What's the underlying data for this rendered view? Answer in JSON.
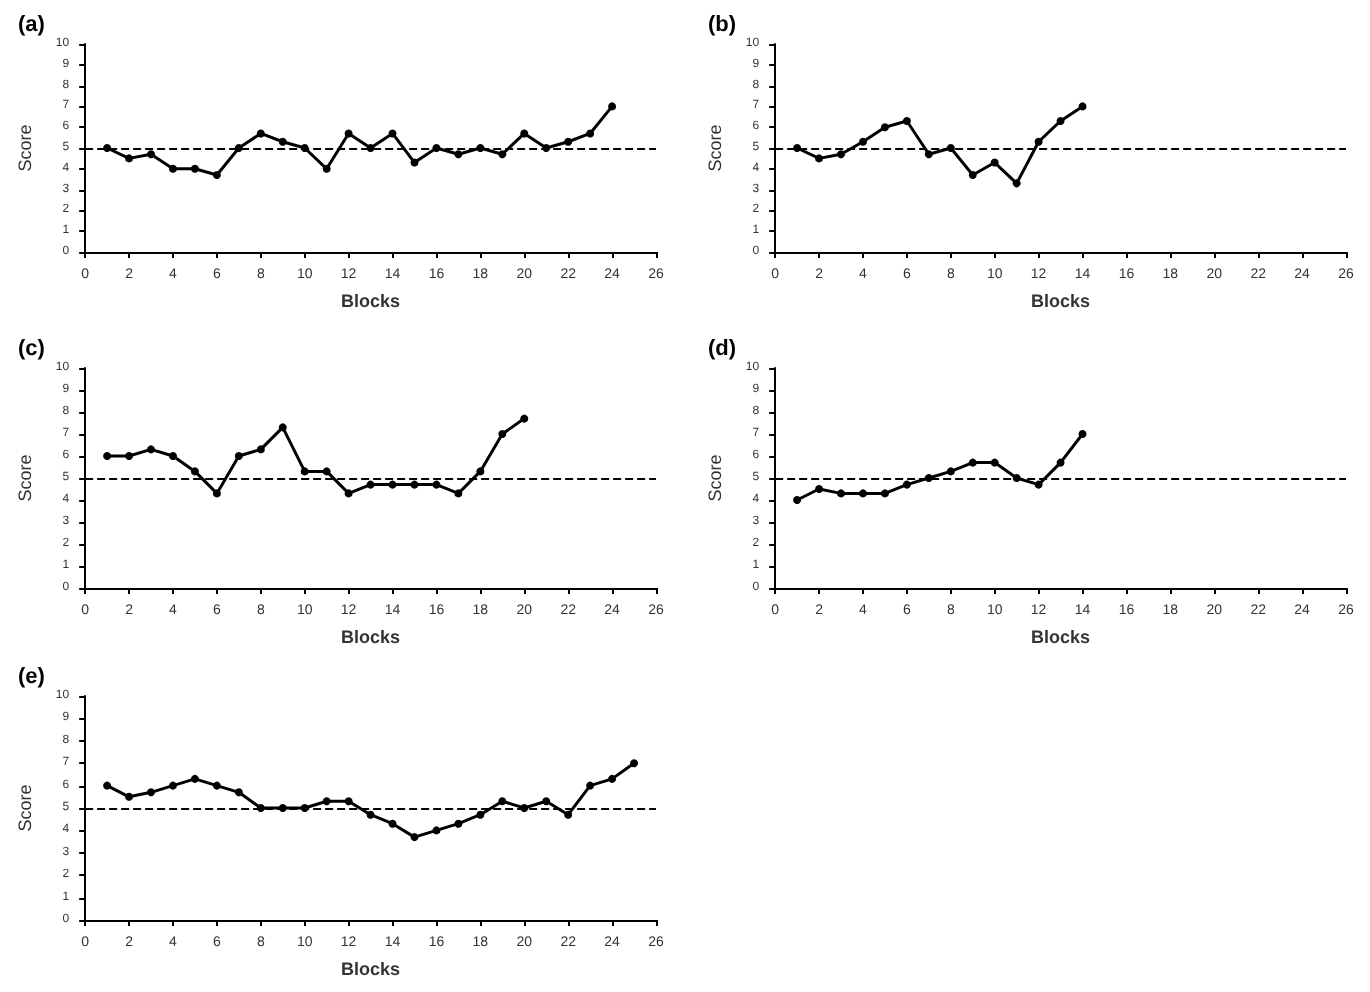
{
  "chart_data": [
    {
      "type": "line",
      "title": "(a)",
      "xlabel": "Blocks",
      "ylabel": "Score",
      "marker": "circle",
      "line_style": "solid",
      "grid": false,
      "xlim": [
        0,
        26
      ],
      "xticks": [
        0,
        2,
        4,
        6,
        8,
        10,
        12,
        14,
        16,
        18,
        20,
        22,
        24,
        26
      ],
      "ylim": [
        0,
        10
      ],
      "yticks": [
        0,
        1,
        2,
        3,
        4,
        5,
        6,
        7,
        8,
        9,
        10
      ],
      "ref_lines": [
        {
          "axis": "y",
          "value": 5,
          "line_style": "dashed",
          "color": "#000000"
        }
      ],
      "x": [
        1,
        2,
        3,
        4,
        5,
        6,
        7,
        8,
        9,
        10,
        11,
        12,
        13,
        14,
        15,
        16,
        17,
        18,
        19,
        20,
        21,
        22,
        23,
        24
      ],
      "series": [
        {
          "color": "#000000",
          "values": [
            5,
            4.5,
            4.7,
            4,
            4,
            3.7,
            5,
            5.7,
            5.3,
            5,
            4,
            5.7,
            5,
            5.7,
            4.3,
            5,
            4.7,
            5,
            4.7,
            5.7,
            5,
            5.3,
            5.7,
            7
          ]
        }
      ]
    },
    {
      "type": "line",
      "title": "(b)",
      "xlabel": "Blocks",
      "ylabel": "Score",
      "marker": "circle",
      "line_style": "solid",
      "grid": false,
      "xlim": [
        0,
        26
      ],
      "xticks": [
        0,
        2,
        4,
        6,
        8,
        10,
        12,
        14,
        16,
        18,
        20,
        22,
        24,
        26
      ],
      "ylim": [
        0,
        10
      ],
      "yticks": [
        0,
        1,
        2,
        3,
        4,
        5,
        6,
        7,
        8,
        9,
        10
      ],
      "ref_lines": [
        {
          "axis": "y",
          "value": 5,
          "line_style": "dashed",
          "color": "#000000"
        }
      ],
      "x": [
        1,
        2,
        3,
        4,
        5,
        6,
        7,
        8,
        9,
        10,
        11,
        12,
        13,
        14
      ],
      "series": [
        {
          "color": "#000000",
          "values": [
            5,
            4.5,
            4.7,
            5.3,
            6,
            6.3,
            4.7,
            5,
            3.7,
            4.3,
            3.3,
            5.3,
            6.3,
            7
          ]
        }
      ]
    },
    {
      "type": "line",
      "title": "(c)",
      "xlabel": "Blocks",
      "ylabel": "Score",
      "marker": "circle",
      "line_style": "solid",
      "grid": false,
      "xlim": [
        0,
        26
      ],
      "xticks": [
        0,
        2,
        4,
        6,
        8,
        10,
        12,
        14,
        16,
        18,
        20,
        22,
        24,
        26
      ],
      "ylim": [
        0,
        10
      ],
      "yticks": [
        0,
        1,
        2,
        3,
        4,
        5,
        6,
        7,
        8,
        9,
        10
      ],
      "ref_lines": [
        {
          "axis": "y",
          "value": 5,
          "line_style": "dashed",
          "color": "#000000"
        }
      ],
      "x": [
        1,
        2,
        3,
        4,
        5,
        6,
        7,
        8,
        9,
        10,
        11,
        12,
        13,
        14,
        15,
        16,
        17,
        18,
        19,
        20
      ],
      "series": [
        {
          "color": "#000000",
          "values": [
            6,
            6,
            6.3,
            6,
            5.3,
            4.3,
            6,
            6.3,
            7.3,
            5.3,
            5.3,
            4.3,
            4.7,
            4.7,
            4.7,
            4.7,
            4.3,
            5.3,
            7,
            7.7
          ]
        }
      ]
    },
    {
      "type": "line",
      "title": "(d)",
      "xlabel": "Blocks",
      "ylabel": "Score",
      "marker": "circle",
      "line_style": "solid",
      "grid": false,
      "xlim": [
        0,
        26
      ],
      "xticks": [
        0,
        2,
        4,
        6,
        8,
        10,
        12,
        14,
        16,
        18,
        20,
        22,
        24,
        26
      ],
      "ylim": [
        0,
        10
      ],
      "yticks": [
        0,
        1,
        2,
        3,
        4,
        5,
        6,
        7,
        8,
        9,
        10
      ],
      "ref_lines": [
        {
          "axis": "y",
          "value": 5,
          "line_style": "dashed",
          "color": "#000000"
        }
      ],
      "x": [
        1,
        2,
        3,
        4,
        5,
        6,
        7,
        8,
        9,
        10,
        11,
        12,
        13,
        14
      ],
      "series": [
        {
          "color": "#000000",
          "values": [
            4,
            4.5,
            4.3,
            4.3,
            4.3,
            4.7,
            5,
            5.3,
            5.7,
            5.7,
            5,
            4.7,
            5.7,
            7
          ]
        }
      ]
    },
    {
      "type": "line",
      "title": "(e)",
      "xlabel": "Blocks",
      "ylabel": "Score",
      "marker": "circle",
      "line_style": "solid",
      "grid": false,
      "xlim": [
        0,
        26
      ],
      "xticks": [
        0,
        2,
        4,
        6,
        8,
        10,
        12,
        14,
        16,
        18,
        20,
        22,
        24,
        26
      ],
      "ylim": [
        0,
        10
      ],
      "yticks": [
        0,
        1,
        2,
        3,
        4,
        5,
        6,
        7,
        8,
        9,
        10
      ],
      "ref_lines": [
        {
          "axis": "y",
          "value": 5,
          "line_style": "dashed",
          "color": "#000000"
        }
      ],
      "x": [
        1,
        2,
        3,
        4,
        5,
        6,
        7,
        8,
        9,
        10,
        11,
        12,
        13,
        14,
        15,
        16,
        17,
        18,
        19,
        20,
        21,
        22,
        23,
        24,
        25
      ],
      "series": [
        {
          "color": "#000000",
          "values": [
            6,
            5.5,
            5.7,
            6,
            6.3,
            6,
            5.7,
            5,
            5,
            5,
            5.3,
            5.3,
            4.7,
            4.3,
            3.7,
            4,
            4.3,
            4.7,
            5.3,
            5,
            5.3,
            4.7,
            6,
            6.3,
            7
          ]
        }
      ]
    }
  ]
}
